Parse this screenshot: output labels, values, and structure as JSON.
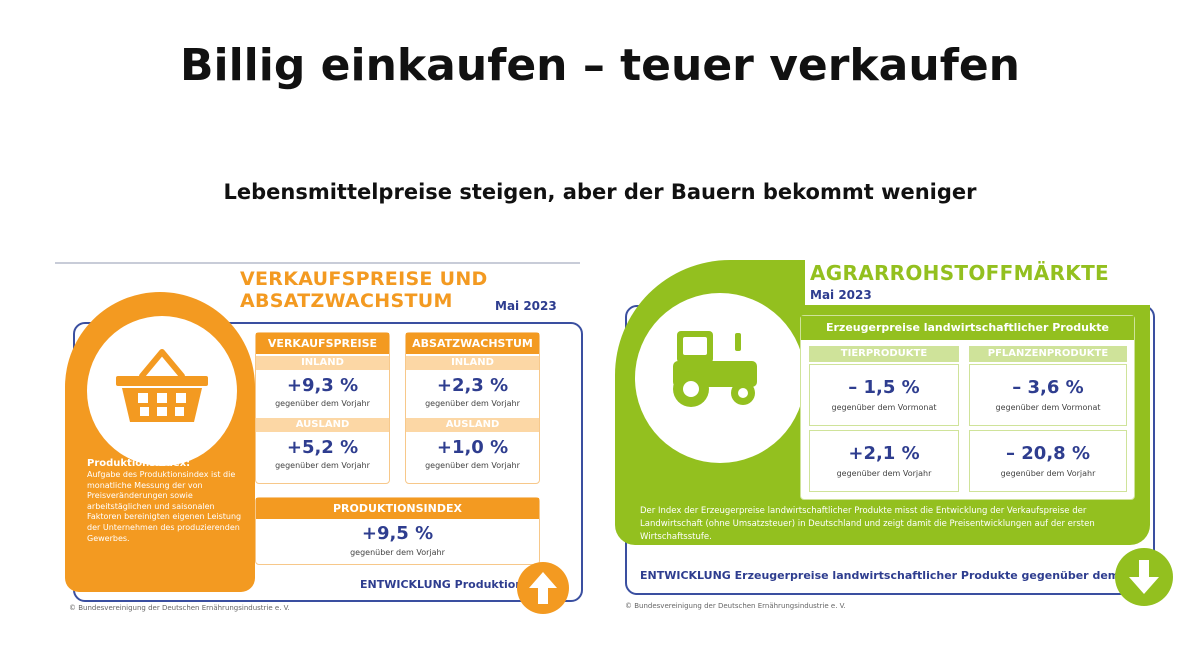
{
  "title": "Billig einkaufen – teuer verkaufen",
  "subtitle": "Lebensmittelpreise steigen, aber  der Bauern bekommt weniger",
  "colors": {
    "orange": "#f39a21",
    "green": "#93c01f",
    "navy": "#2e3d8f"
  },
  "left": {
    "heading_line1": "VERKAUFSPREISE UND",
    "heading_line2": "ABSATZWACHSTUM",
    "date": "Mai 2023",
    "icon": "shopping-basket-icon",
    "produktionsindex_title": "Produktionsindex:",
    "produktionsindex_text": "Aufgabe des Produktionsindex ist die monatliche Messung der von Preisveränderungen sowie arbeitstäglichen und saisonalen Faktoren bereinigten eigenen Leistung der Unternehmen des produzierenden Gewerbes.",
    "verkaufspreise": {
      "header": "VERKAUFSPREISE",
      "inland_label": "INLAND",
      "inland_value": "+9,3 %",
      "inland_caption": "gegenüber dem Vorjahr",
      "ausland_label": "AUSLAND",
      "ausland_value": "+5,2 %",
      "ausland_caption": "gegenüber dem Vorjahr"
    },
    "absatzwachstum": {
      "header": "ABSATZWACHSTUM",
      "inland_label": "INLAND",
      "inland_value": "+2,3 %",
      "inland_caption": "gegenüber dem Vorjahr",
      "ausland_label": "AUSLAND",
      "ausland_value": "+1,0 %",
      "ausland_caption": "gegenüber dem Vorjahr"
    },
    "produktionsindex": {
      "header": "PRODUKTIONSINDEX",
      "value": "+9,5 %",
      "caption": "gegenüber dem Vorjahr"
    },
    "entwicklung_label": "ENTWICKLUNG Produktion:",
    "entwicklung_icon": "arrow-up-icon",
    "copyright": "© Bundesvereinigung der Deutschen Ernährungsindustrie e. V."
  },
  "right": {
    "heading": "AGRARROHSTOFFMÄRKTE",
    "date": "Mai 2023",
    "icon": "tractor-icon",
    "box_title": "Erzeugerpreise landwirtschaftlicher Produkte",
    "col1_header": "TIERPRODUKTE",
    "col2_header": "PFLANZENPRODUKTE",
    "r1c1_value": "– 1,5 %",
    "r1c1_caption": "gegenüber dem Vormonat",
    "r1c2_value": "– 3,6 %",
    "r1c2_caption": "gegenüber dem Vormonat",
    "r2c1_value": "+2,1 %",
    "r2c1_caption": "gegenüber dem Vorjahr",
    "r2c2_value": "– 20,8 %",
    "r2c2_caption": "gegenüber dem Vorjahr",
    "description": "Der Index der Erzeugerpreise landwirtschaftlicher Produkte misst die Entwicklung der Verkaufspreise der Landwirtschaft (ohne Umsatzsteuer) in Deutschland und zeigt damit die Preisentwicklungen auf der ersten Wirtschaftsstufe.",
    "entwicklung_label": "ENTWICKLUNG Erzeugerpreise landwirtschaftlicher Produkte gegenüber dem Vorjahr:",
    "entwicklung_icon": "arrow-down-icon",
    "copyright": "© Bundesvereinigung der Deutschen Ernährungsindustrie e. V."
  }
}
